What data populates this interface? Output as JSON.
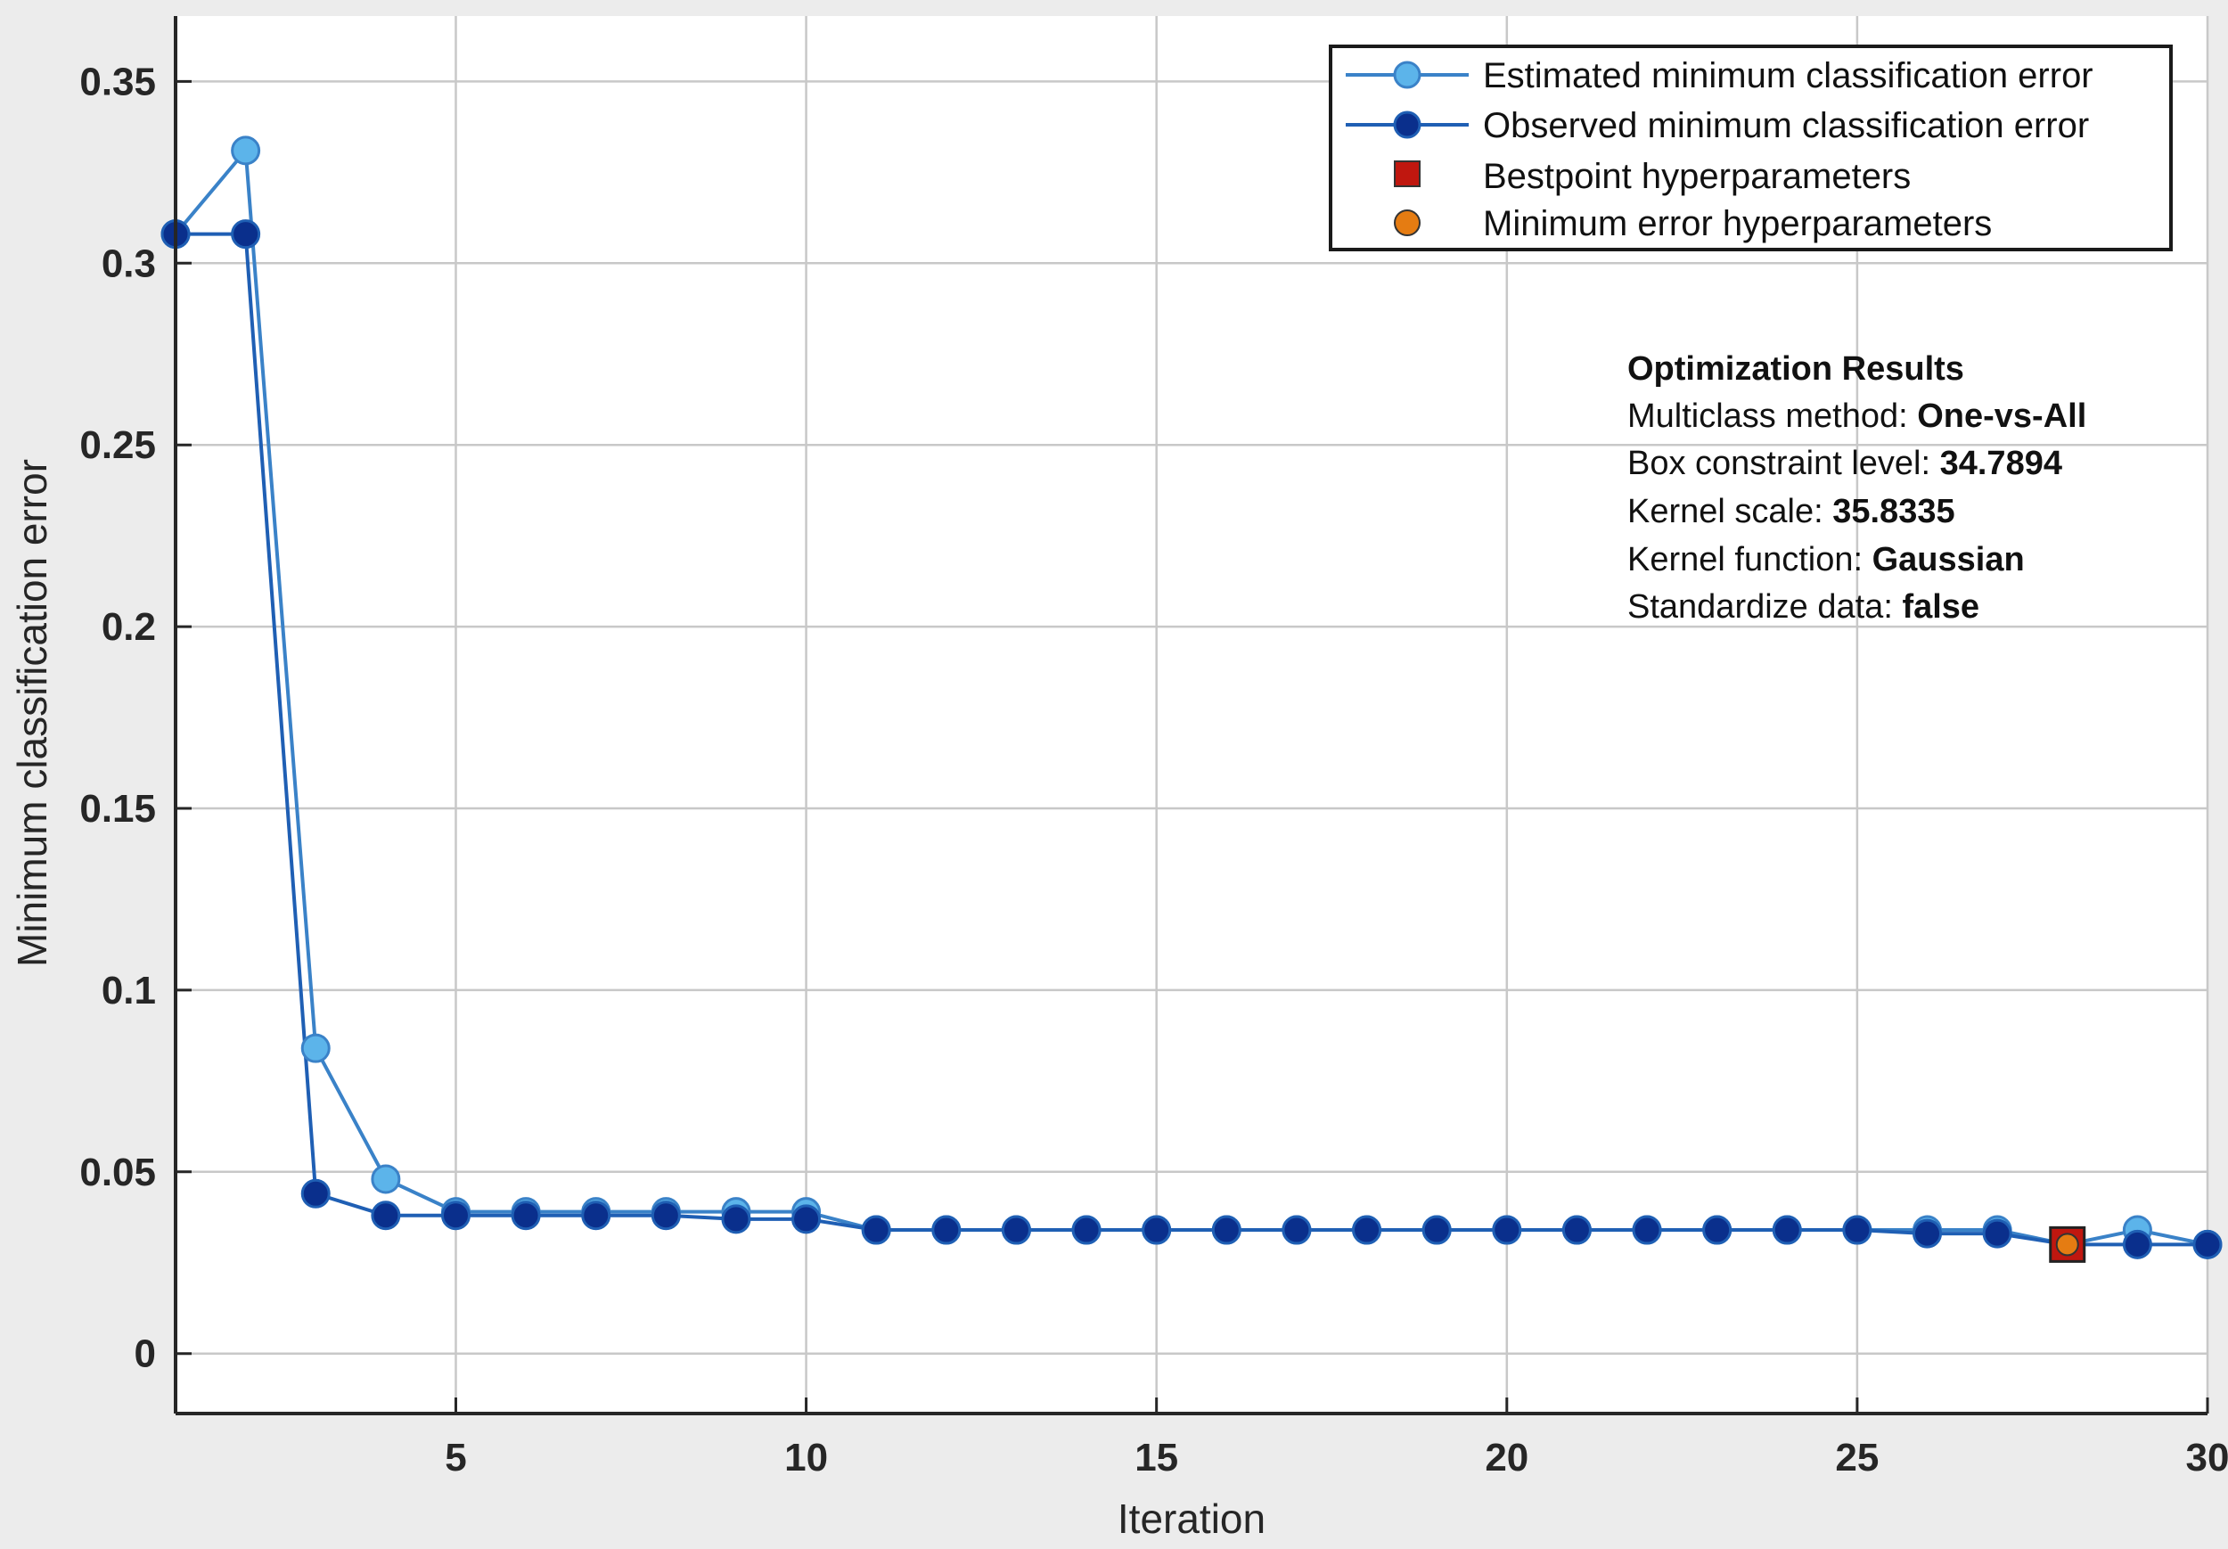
{
  "chart_data": {
    "type": "line",
    "title": "",
    "xlabel": "Iteration",
    "ylabel": "Minimum classification error",
    "xlim": [
      1,
      30
    ],
    "ylim": [
      -0.0165,
      0.368
    ],
    "xticks": [
      5,
      10,
      15,
      20,
      25,
      30
    ],
    "xtick_labels": [
      "5",
      "10",
      "15",
      "20",
      "25",
      "30"
    ],
    "yticks": [
      0,
      0.05,
      0.1,
      0.15,
      0.2,
      0.25,
      0.3,
      0.35
    ],
    "ytick_labels": [
      "0",
      "0.05",
      "0.1",
      "0.15",
      "0.2",
      "0.25",
      "0.3",
      "0.35"
    ],
    "grid": true,
    "legend_position": "top-right",
    "x": [
      1,
      2,
      3,
      4,
      5,
      6,
      7,
      8,
      9,
      10,
      11,
      12,
      13,
      14,
      15,
      16,
      17,
      18,
      19,
      20,
      21,
      22,
      23,
      24,
      25,
      26,
      27,
      28,
      29,
      30
    ],
    "series": [
      {
        "name": "Estimated minimum classification error",
        "color": "#3a82c8",
        "marker_color": "#5cb4ea",
        "values": [
          0.308,
          0.331,
          0.084,
          0.048,
          0.039,
          0.039,
          0.039,
          0.039,
          0.039,
          0.039,
          0.034,
          0.034,
          0.034,
          0.034,
          0.034,
          0.034,
          0.034,
          0.034,
          0.034,
          0.034,
          0.034,
          0.034,
          0.034,
          0.034,
          0.034,
          0.034,
          0.034,
          0.03,
          0.034,
          0.03
        ]
      },
      {
        "name": "Observed minimum classification error",
        "color": "#1f5fb4",
        "marker_color": "#0a2f8c",
        "values": [
          0.308,
          0.308,
          0.044,
          0.038,
          0.038,
          0.038,
          0.038,
          0.038,
          0.037,
          0.037,
          0.034,
          0.034,
          0.034,
          0.034,
          0.034,
          0.034,
          0.034,
          0.034,
          0.034,
          0.034,
          0.034,
          0.034,
          0.034,
          0.034,
          0.034,
          0.033,
          0.033,
          0.03,
          0.03,
          0.03
        ]
      }
    ],
    "special_points": [
      {
        "name": "Bestpoint hyperparameters",
        "x": 28,
        "y": 0.03,
        "marker": "square",
        "color": "#c0170f"
      },
      {
        "name": "Minimum error hyperparameters",
        "x": 28,
        "y": 0.03,
        "marker": "circle",
        "color": "#e57c12"
      }
    ],
    "annotation": {
      "title": "Optimization Results",
      "lines": [
        {
          "label": "Multiclass method: ",
          "value": "One-vs-All"
        },
        {
          "label": "Box constraint level: ",
          "value": "34.7894"
        },
        {
          "label": "Kernel scale: ",
          "value": "35.8335"
        },
        {
          "label": "Kernel function: ",
          "value": "Gaussian"
        },
        {
          "label": "Standardize data: ",
          "value": "false"
        }
      ]
    }
  }
}
